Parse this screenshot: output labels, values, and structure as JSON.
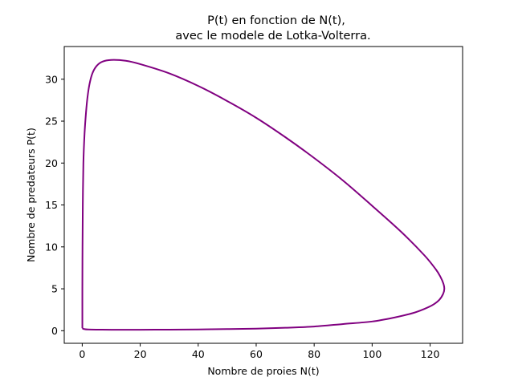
{
  "chart_data": {
    "type": "line",
    "title_lines": [
      "P(t) en fonction de N(t),",
      "avec le modele de Lotka-Volterra."
    ],
    "xlabel": "Nombre de proies N(t)",
    "ylabel": "Nombre de predateurs P(t)",
    "xlim": [
      -6.2,
      131.2
    ],
    "ylim": [
      -1.5,
      33.9
    ],
    "x_ticks": [
      0,
      20,
      40,
      60,
      80,
      100,
      120
    ],
    "y_ticks": [
      0,
      5,
      10,
      15,
      20,
      25,
      30
    ],
    "grid": false,
    "legend": "none",
    "series": [
      {
        "color": "#800080",
        "points": [
          [
            0.05,
            0.3
          ],
          [
            0.6,
            0.2
          ],
          [
            2,
            0.15
          ],
          [
            5,
            0.13
          ],
          [
            10,
            0.12
          ],
          [
            20,
            0.12
          ],
          [
            30,
            0.13
          ],
          [
            40,
            0.15
          ],
          [
            50,
            0.2
          ],
          [
            60,
            0.25
          ],
          [
            70,
            0.35
          ],
          [
            80,
            0.5
          ],
          [
            90,
            0.8
          ],
          [
            100,
            1.1
          ],
          [
            108,
            1.6
          ],
          [
            114,
            2.1
          ],
          [
            118,
            2.6
          ],
          [
            121,
            3.1
          ],
          [
            123.2,
            3.7
          ],
          [
            124.5,
            4.4
          ],
          [
            124.9,
            5.0
          ],
          [
            124.6,
            5.6
          ],
          [
            123.6,
            6.4
          ],
          [
            122,
            7.3
          ],
          [
            118,
            9.0
          ],
          [
            110,
            11.8
          ],
          [
            100,
            14.9
          ],
          [
            90,
            17.9
          ],
          [
            80,
            20.6
          ],
          [
            70,
            23.1
          ],
          [
            60,
            25.4
          ],
          [
            50,
            27.4
          ],
          [
            40,
            29.2
          ],
          [
            30,
            30.7
          ],
          [
            20,
            31.8
          ],
          [
            15,
            32.2
          ],
          [
            10,
            32.3
          ],
          [
            7,
            32.1
          ],
          [
            5,
            31.6
          ],
          [
            3.5,
            30.7
          ],
          [
            2.5,
            29.4
          ],
          [
            1.8,
            27.8
          ],
          [
            1.3,
            26.0
          ],
          [
            0.8,
            23.5
          ],
          [
            0.4,
            20.0
          ],
          [
            0.2,
            15.0
          ],
          [
            0.1,
            10.0
          ],
          [
            0.05,
            5.0
          ],
          [
            0.05,
            0.3
          ]
        ]
      }
    ]
  }
}
